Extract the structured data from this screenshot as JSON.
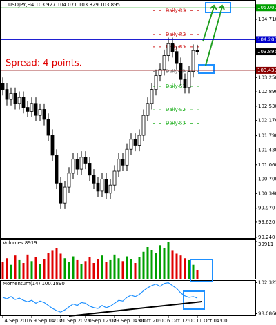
{
  "chart_data": {
    "type": "candlestick",
    "title": "USDJPY,H4  103.927 104.071 103.829 103.895",
    "annotation": "Spread: 4 points.",
    "ylim": [
      99.22,
      105.16
    ],
    "yticks": [
      {
        "value": 104.71,
        "label": "104.710"
      },
      {
        "value": 103.25,
        "label": "103.250"
      },
      {
        "value": 102.89,
        "label": "102.890"
      },
      {
        "value": 102.53,
        "label": "102.530"
      },
      {
        "value": 102.17,
        "label": "102.170"
      },
      {
        "value": 101.79,
        "label": "101.790"
      },
      {
        "value": 101.43,
        "label": "101.430"
      },
      {
        "value": 101.06,
        "label": "101.060"
      },
      {
        "value": 100.7,
        "label": "100.700"
      },
      {
        "value": 100.34,
        "label": "100.340"
      },
      {
        "value": 99.97,
        "label": "99.970"
      },
      {
        "value": 99.62,
        "label": "99.620"
      },
      {
        "value": 99.24,
        "label": "99.240"
      }
    ],
    "hlines": [
      {
        "value": 105.0,
        "label": "105.000",
        "color": "#00a000"
      },
      {
        "value": 104.2,
        "label": "104.200",
        "color": "#0000cc"
      },
      {
        "value": 103.43,
        "label": "103.430",
        "color": "#8b0000"
      }
    ],
    "pivots": [
      {
        "label": "Daily R3",
        "value": 104.93,
        "color": "#d02020"
      },
      {
        "label": "Daily R2",
        "value": 104.33,
        "color": "#d02020"
      },
      {
        "label": "Daily R1",
        "value": 104.02,
        "color": "#d02020"
      },
      {
        "label": "Daily PP",
        "value": 103.4,
        "color": "#808080"
      },
      {
        "label": "Daily S1",
        "value": 103.03,
        "color": "#20b020"
      },
      {
        "label": "Daily S2",
        "value": 102.44,
        "color": "#20b020"
      },
      {
        "label": "Daily S3",
        "value": 102.1,
        "color": "#20b020"
      }
    ],
    "categories": [
      "14 Sep 2016",
      null,
      null,
      null,
      null,
      null,
      null,
      "19 Sep 04:00",
      null,
      null,
      null,
      null,
      null,
      null,
      "21 Sep 20:00",
      null,
      null,
      null,
      null,
      null,
      "26 Sep 12:00",
      null,
      null,
      null,
      null,
      null,
      null,
      "29 Sep 04:00",
      null,
      null,
      null,
      null,
      null,
      "3 Oct 20:00",
      null,
      null,
      null,
      null,
      null,
      null,
      "6 Oct 12:00",
      null,
      null,
      null,
      null,
      null,
      null,
      "11 Oct 04:00"
    ],
    "open": [
      103.1,
      102.95,
      102.7,
      102.85,
      102.6,
      102.75,
      102.5,
      102.4,
      102.6,
      102.3,
      102.45,
      102.2,
      101.8,
      101.3,
      100.6,
      100.1,
      100.5,
      100.85,
      101.2,
      100.95,
      101.25,
      101.1,
      100.8,
      100.6,
      100.4,
      100.7,
      100.35,
      100.55,
      100.9,
      101.2,
      101.05,
      101.45,
      101.7,
      101.55,
      101.8,
      102.3,
      102.6,
      102.95,
      103.3,
      103.45,
      103.8,
      104.1,
      103.9,
      103.6,
      103.2,
      103.0,
      103.4,
      103.927
    ],
    "high": [
      103.25,
      103.1,
      103.0,
      103.0,
      102.9,
      102.9,
      102.65,
      102.75,
      102.75,
      102.6,
      102.6,
      102.35,
      101.95,
      101.45,
      100.75,
      100.65,
      101.0,
      101.35,
      101.35,
      101.4,
      101.4,
      101.25,
      100.95,
      100.75,
      100.85,
      100.85,
      100.7,
      101.05,
      101.35,
      101.35,
      101.6,
      101.85,
      101.85,
      101.95,
      102.45,
      102.75,
      103.1,
      103.45,
      103.6,
      103.95,
      104.25,
      104.25,
      104.05,
      103.75,
      103.35,
      103.55,
      104.08,
      104.071
    ],
    "low": [
      102.8,
      102.55,
      102.55,
      102.45,
      102.45,
      102.35,
      102.25,
      102.25,
      102.15,
      102.15,
      102.05,
      101.65,
      101.15,
      100.45,
      99.95,
      99.95,
      100.35,
      100.7,
      100.8,
      100.8,
      100.95,
      100.65,
      100.45,
      100.25,
      100.25,
      100.2,
      100.2,
      100.4,
      100.75,
      100.9,
      100.9,
      101.3,
      101.4,
      101.4,
      101.65,
      102.15,
      102.45,
      102.8,
      103.15,
      103.3,
      103.65,
      103.75,
      103.45,
      103.05,
      102.85,
      102.85,
      103.25,
      103.829
    ],
    "close": [
      102.95,
      102.7,
      102.85,
      102.6,
      102.75,
      102.5,
      102.4,
      102.6,
      102.3,
      102.45,
      102.2,
      101.8,
      101.3,
      100.6,
      100.1,
      100.5,
      100.85,
      101.2,
      100.95,
      101.25,
      101.1,
      100.8,
      100.6,
      100.4,
      100.7,
      100.35,
      100.55,
      100.9,
      101.2,
      101.05,
      101.45,
      101.7,
      101.55,
      101.8,
      102.3,
      102.6,
      102.95,
      103.3,
      103.45,
      103.8,
      104.1,
      103.9,
      103.6,
      103.2,
      103.0,
      103.4,
      103.927,
      103.895
    ],
    "volume_title": "Volumes 8919",
    "volume_ylim": [
      0,
      39911
    ],
    "volume_yticks": [
      39911
    ],
    "volumes": [
      18000,
      22000,
      15000,
      25000,
      20000,
      17000,
      26000,
      19000,
      23000,
      16000,
      21000,
      28000,
      30000,
      33000,
      27000,
      22000,
      18000,
      24000,
      20000,
      16000,
      19000,
      23000,
      17000,
      21000,
      25000,
      18000,
      20000,
      26000,
      22000,
      19000,
      24000,
      21000,
      17000,
      23000,
      29000,
      34000,
      31000,
      28000,
      36000,
      33000,
      39911,
      30000,
      27000,
      25000,
      22000,
      20000,
      15000,
      8919
    ],
    "momentum_title": "Momentum(14) 100.1890",
    "momentum_color": "#1e90ff",
    "momentum_ylim": [
      97.95,
      102.45
    ],
    "momentum_yticks": [
      102.3216,
      98.0866
    ],
    "momentum": [
      100.3,
      100.1,
      100.4,
      100.0,
      100.2,
      99.9,
      99.7,
      99.9,
      99.5,
      99.8,
      99.6,
      99.2,
      98.8,
      98.5,
      98.3,
      98.6,
      99.0,
      99.4,
      99.2,
      99.6,
      99.5,
      99.1,
      98.9,
      98.8,
      99.2,
      98.9,
      99.1,
      99.5,
      99.9,
      99.8,
      100.3,
      100.6,
      100.4,
      100.7,
      101.2,
      101.6,
      101.9,
      102.1,
      101.8,
      102.2,
      102.3,
      101.9,
      101.5,
      100.9,
      100.5,
      100.3,
      100.4,
      100.189
    ]
  }
}
